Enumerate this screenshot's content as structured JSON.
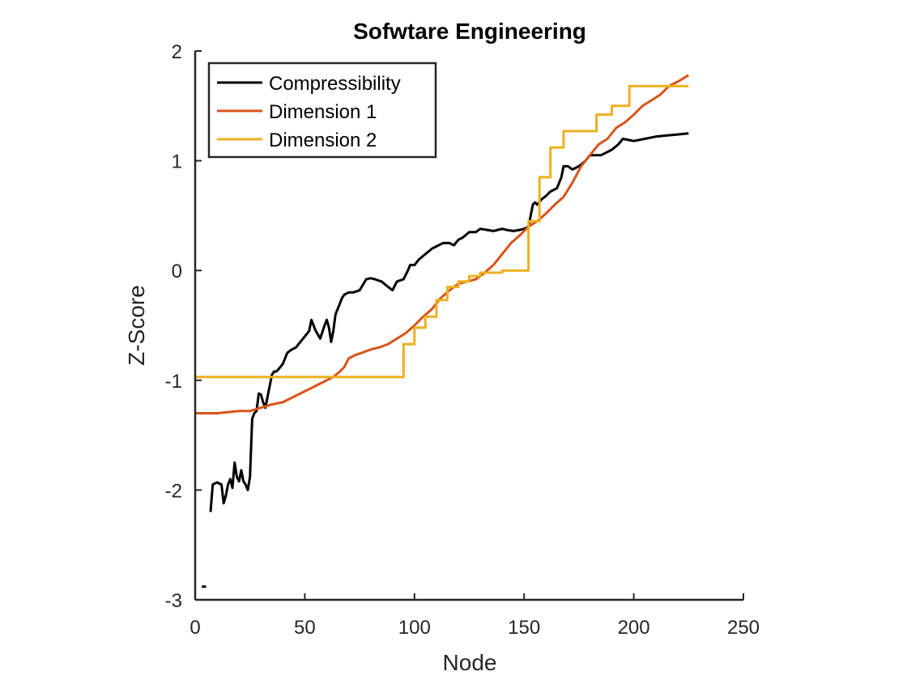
{
  "chart_data": {
    "type": "line",
    "title": "Sofwtare Engineering",
    "xlabel": "Node",
    "ylabel": "Z-Score",
    "xlim": [
      0,
      250
    ],
    "ylim": [
      -3,
      2
    ],
    "xticks": [
      0,
      50,
      100,
      150,
      200,
      250
    ],
    "xtick_labels": [
      "0",
      "50",
      "100",
      "150",
      "200",
      "250"
    ],
    "yticks": [
      -3,
      -2,
      -1,
      0,
      1,
      2
    ],
    "ytick_labels": [
      "-3",
      "-2",
      "-1",
      "0",
      "1",
      "2"
    ],
    "grid": false,
    "legend_position": "top-left",
    "colors": {
      "axis": "#262626",
      "background": "#ffffff"
    },
    "series": [
      {
        "name": "Compressibility",
        "color": "#000000",
        "x": [
          7,
          8,
          10,
          12,
          13,
          14,
          15,
          16,
          17,
          18,
          19,
          20,
          21,
          22,
          23,
          24,
          25,
          26,
          27,
          28,
          29,
          30,
          31,
          32,
          33,
          34,
          35,
          36,
          37,
          38,
          40,
          42,
          44,
          46,
          48,
          50,
          52,
          53,
          55,
          57,
          59,
          60,
          61,
          62,
          63,
          64,
          65,
          66,
          67,
          68,
          70,
          72,
          75,
          78,
          80,
          82,
          85,
          88,
          90,
          92,
          95,
          97,
          98,
          100,
          102,
          105,
          108,
          110,
          113,
          116,
          118,
          120,
          122,
          125,
          128,
          130,
          133,
          136,
          138,
          140,
          142,
          145,
          148,
          150,
          152,
          153,
          154,
          155,
          156,
          158,
          160,
          162,
          165,
          167,
          168,
          170,
          172,
          175,
          178,
          180,
          185,
          190,
          193,
          195,
          200,
          205,
          210,
          215,
          220,
          225
        ],
        "y": [
          -2.2,
          -1.95,
          -1.93,
          -1.95,
          -2.12,
          -2.05,
          -1.95,
          -1.9,
          -1.98,
          -1.75,
          -1.88,
          -1.92,
          -1.82,
          -1.92,
          -1.95,
          -2.0,
          -1.88,
          -1.35,
          -1.3,
          -1.28,
          -1.12,
          -1.13,
          -1.2,
          -1.25,
          -1.15,
          -1.05,
          -0.95,
          -0.92,
          -0.92,
          -0.9,
          -0.85,
          -0.75,
          -0.72,
          -0.7,
          -0.65,
          -0.6,
          -0.55,
          -0.45,
          -0.55,
          -0.62,
          -0.5,
          -0.45,
          -0.52,
          -0.65,
          -0.55,
          -0.4,
          -0.35,
          -0.3,
          -0.25,
          -0.22,
          -0.2,
          -0.2,
          -0.18,
          -0.08,
          -0.07,
          -0.08,
          -0.1,
          -0.15,
          -0.18,
          -0.1,
          -0.08,
          0.0,
          0.05,
          0.05,
          0.1,
          0.15,
          0.2,
          0.22,
          0.25,
          0.25,
          0.23,
          0.28,
          0.3,
          0.35,
          0.35,
          0.38,
          0.37,
          0.36,
          0.37,
          0.38,
          0.37,
          0.36,
          0.37,
          0.38,
          0.4,
          0.5,
          0.6,
          0.62,
          0.6,
          0.65,
          0.68,
          0.72,
          0.75,
          0.85,
          0.95,
          0.95,
          0.92,
          0.95,
          1.0,
          1.05,
          1.05,
          1.1,
          1.15,
          1.2,
          1.18,
          1.2,
          1.22,
          1.23,
          1.24,
          1.25
        ]
      },
      {
        "name": "Dimension 1",
        "color": "#D95319",
        "x": [
          0,
          5,
          10,
          15,
          20,
          25,
          30,
          35,
          40,
          45,
          50,
          55,
          60,
          63,
          66,
          68,
          70,
          73,
          76,
          80,
          84,
          88,
          92,
          96,
          100,
          104,
          108,
          112,
          116,
          120,
          124,
          128,
          132,
          136,
          140,
          144,
          148,
          152,
          156,
          160,
          164,
          168,
          172,
          176,
          180,
          184,
          188,
          192,
          196,
          200,
          204,
          208,
          212,
          216,
          220,
          225
        ],
        "y": [
          -1.3,
          -1.3,
          -1.3,
          -1.29,
          -1.28,
          -1.28,
          -1.25,
          -1.22,
          -1.2,
          -1.15,
          -1.1,
          -1.05,
          -1.0,
          -0.97,
          -0.92,
          -0.88,
          -0.8,
          -0.77,
          -0.75,
          -0.72,
          -0.7,
          -0.67,
          -0.62,
          -0.57,
          -0.5,
          -0.42,
          -0.35,
          -0.25,
          -0.18,
          -0.12,
          -0.1,
          -0.08,
          -0.02,
          0.05,
          0.15,
          0.25,
          0.32,
          0.4,
          0.45,
          0.52,
          0.6,
          0.67,
          0.8,
          0.95,
          1.05,
          1.15,
          1.2,
          1.3,
          1.35,
          1.42,
          1.5,
          1.55,
          1.6,
          1.68,
          1.72,
          1.78
        ]
      },
      {
        "name": "Dimension 2",
        "color": "#EDB120",
        "x": [
          0,
          95,
          95,
          100,
          100,
          105,
          105,
          110,
          110,
          115,
          115,
          120,
          120,
          125,
          125,
          130,
          130,
          140,
          140,
          152,
          152,
          157,
          157,
          162,
          162,
          168,
          168,
          175,
          175,
          183,
          183,
          190,
          190,
          198,
          198,
          202,
          202,
          225
        ],
        "y": [
          -0.97,
          -0.97,
          -0.67,
          -0.67,
          -0.52,
          -0.52,
          -0.42,
          -0.42,
          -0.27,
          -0.27,
          -0.15,
          -0.15,
          -0.1,
          -0.1,
          -0.05,
          -0.05,
          -0.02,
          -0.02,
          0.0,
          0.0,
          0.45,
          0.45,
          0.85,
          0.85,
          1.12,
          1.12,
          1.27,
          1.27,
          1.27,
          1.27,
          1.42,
          1.42,
          1.5,
          1.5,
          1.68,
          1.68,
          1.68,
          1.68
        ]
      },
      {
        "name": "",
        "color": "#000000",
        "x": [
          3,
          5
        ],
        "y": [
          -2.88,
          -2.88
        ]
      }
    ]
  }
}
